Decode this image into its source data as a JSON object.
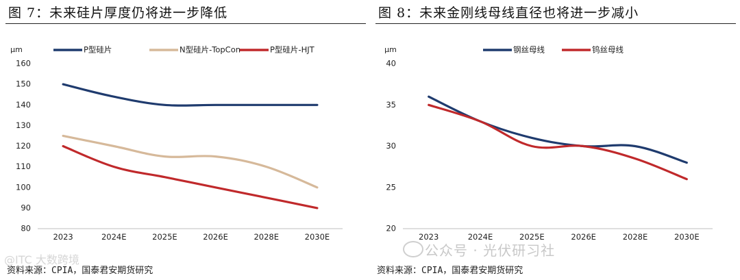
{
  "watermark": {
    "text": "公众号 · 光伏研习社",
    "corner_text": "@ITC 大数跨境"
  },
  "chart_data": [
    {
      "type": "line",
      "title": "图 7：未来硅片厚度仍将进一步降低",
      "source": "资料来源：CPIA，国泰君安期货研究",
      "ylabel": "μm",
      "xlabel": "",
      "categories": [
        "2023",
        "2024E",
        "2025E",
        "2026E",
        "2028E",
        "2030E"
      ],
      "ylim": [
        80,
        160
      ],
      "yticks": [
        80,
        90,
        100,
        110,
        120,
        130,
        140,
        150,
        160
      ],
      "legend_position": "top",
      "grid": false,
      "series": [
        {
          "name": "P型硅片",
          "color": "#1f3b6e",
          "values": [
            150,
            144,
            140,
            140,
            140,
            140
          ]
        },
        {
          "name": "N型硅片-TopCon",
          "color": "#d6b99a",
          "values": [
            125,
            120,
            115,
            115,
            110,
            100
          ]
        },
        {
          "name": "P型硅片-HJT",
          "color": "#c0292b",
          "values": [
            120,
            110,
            105,
            100,
            95,
            90
          ]
        }
      ]
    },
    {
      "type": "line",
      "title": "图 8：未来金刚线母线直径也将进一步减小",
      "source": "资料来源：CPIA，国泰君安期货研究",
      "ylabel": "μm",
      "xlabel": "",
      "categories": [
        "2023",
        "2024E",
        "2025E",
        "2026E",
        "2028E",
        "2030E"
      ],
      "ylim": [
        20,
        40
      ],
      "yticks": [
        20,
        25,
        30,
        35,
        40
      ],
      "legend_position": "top",
      "grid": false,
      "series": [
        {
          "name": "钢丝母线",
          "color": "#1f3b6e",
          "values": [
            36,
            33,
            31,
            30,
            30,
            28
          ]
        },
        {
          "name": "钨丝母线",
          "color": "#c0292b",
          "values": [
            35,
            33,
            30,
            30,
            28.5,
            26
          ]
        }
      ]
    }
  ]
}
